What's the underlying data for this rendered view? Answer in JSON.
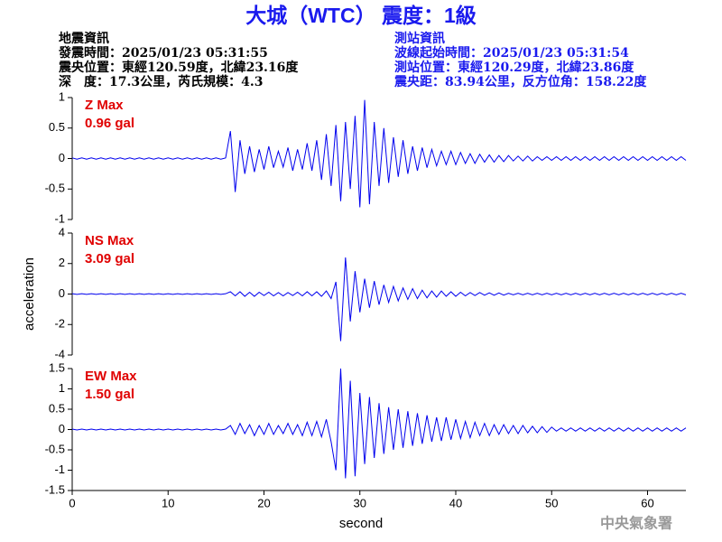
{
  "header": {
    "title": "大城（WTC） 震度：1級",
    "left_info": [
      "地震資訊",
      "發震時間：2025/01/23 05:31:55",
      "震央位置：東經120.59度，北緯23.16度",
      "深　度：17.3公里，芮氏規模：4.3"
    ],
    "right_info": [
      "測站資訊",
      "波線起始時間：2025/01/23 05:31:54",
      "測站位置：東經120.29度，北緯23.86度",
      "震央距：83.94公里，反方位角：158.22度"
    ],
    "footer": "中央氣象署"
  },
  "chart_data": [
    {
      "type": "line",
      "annotations": [
        "Z Max",
        "0.96 gal"
      ],
      "x": [
        0,
        0.5,
        1,
        1.5,
        2,
        2.5,
        3,
        3.5,
        4,
        4.5,
        5,
        5.5,
        6,
        6.5,
        7,
        7.5,
        8,
        8.5,
        9,
        9.5,
        10,
        10.5,
        11,
        11.5,
        12,
        12.5,
        13,
        13.5,
        14,
        14.5,
        15,
        15.5,
        16,
        16.5,
        17,
        17.5,
        18,
        18.5,
        19,
        19.5,
        20,
        20.5,
        21,
        21.5,
        22,
        22.5,
        23,
        23.5,
        24,
        24.5,
        25,
        25.5,
        26,
        26.5,
        27,
        27.5,
        28,
        28.5,
        29,
        29.5,
        30,
        30.5,
        31,
        31.5,
        32,
        32.5,
        33,
        33.5,
        34,
        34.5,
        35,
        35.5,
        36,
        36.5,
        37,
        37.5,
        38,
        38.5,
        39,
        39.5,
        40,
        40.5,
        41,
        41.5,
        42,
        42.5,
        43,
        43.5,
        44,
        44.5,
        45,
        45.5,
        46,
        46.5,
        47,
        47.5,
        48,
        48.5,
        49,
        49.5,
        50,
        50.5,
        51,
        51.5,
        52,
        52.5,
        53,
        53.5,
        54,
        54.5,
        55,
        55.5,
        56,
        56.5,
        57,
        57.5,
        58,
        58.5,
        59,
        59.5,
        60,
        60.5,
        61,
        61.5,
        62,
        62.5,
        63,
        63.5,
        64
      ],
      "series": [
        {
          "color": "#0000ee",
          "values": [
            0.01,
            -0.01,
            0.01,
            -0.01,
            0.01,
            -0.01,
            0.01,
            -0.01,
            0.01,
            -0.01,
            0.01,
            -0.01,
            0.01,
            -0.01,
            0.01,
            -0.01,
            0.01,
            -0.01,
            0.01,
            -0.01,
            0.01,
            -0.01,
            0.01,
            -0.01,
            0.01,
            -0.01,
            0.01,
            -0.01,
            0.01,
            -0.01,
            0.01,
            -0.01,
            0.01,
            0.45,
            -0.55,
            0.3,
            -0.25,
            0.2,
            -0.22,
            0.15,
            -0.18,
            0.2,
            -0.15,
            0.12,
            -0.14,
            0.18,
            -0.2,
            0.15,
            -0.18,
            0.25,
            -0.2,
            0.3,
            -0.35,
            0.4,
            -0.45,
            0.55,
            -0.7,
            0.6,
            -0.5,
            0.7,
            -0.8,
            0.96,
            -0.75,
            0.6,
            -0.45,
            0.5,
            -0.4,
            0.35,
            -0.3,
            0.3,
            -0.25,
            0.2,
            -0.2,
            0.18,
            -0.15,
            0.15,
            -0.12,
            0.12,
            -0.1,
            0.12,
            -0.1,
            0.1,
            -0.08,
            0.08,
            -0.08,
            0.07,
            -0.06,
            0.06,
            -0.06,
            0.05,
            -0.05,
            0.05,
            -0.04,
            0.04,
            -0.04,
            0.04,
            -0.04,
            0.03,
            -0.03,
            0.03,
            -0.03,
            0.03,
            -0.03,
            0.03,
            -0.03,
            0.03,
            -0.03,
            0.03,
            -0.03,
            0.03,
            -0.03,
            0.03,
            -0.03,
            0.03,
            -0.03,
            0.03,
            -0.03,
            0.03,
            -0.03,
            0.03,
            -0.03,
            0.03,
            -0.03,
            0.03,
            -0.03,
            0.03,
            -0.03,
            0.03,
            -0.03
          ]
        }
      ],
      "xlim": [
        0,
        64
      ],
      "ylim": [
        -1,
        1
      ],
      "yticks": [
        -1,
        -0.5,
        0,
        0.5,
        1
      ]
    },
    {
      "type": "line",
      "annotations": [
        "NS Max",
        "3.09 gal"
      ],
      "y_label": "acceleration",
      "x": [
        0,
        0.5,
        1,
        1.5,
        2,
        2.5,
        3,
        3.5,
        4,
        4.5,
        5,
        5.5,
        6,
        6.5,
        7,
        7.5,
        8,
        8.5,
        9,
        9.5,
        10,
        10.5,
        11,
        11.5,
        12,
        12.5,
        13,
        13.5,
        14,
        14.5,
        15,
        15.5,
        16,
        16.5,
        17,
        17.5,
        18,
        18.5,
        19,
        19.5,
        20,
        20.5,
        21,
        21.5,
        22,
        22.5,
        23,
        23.5,
        24,
        24.5,
        25,
        25.5,
        26,
        26.5,
        27,
        27.5,
        28,
        28.5,
        29,
        29.5,
        30,
        30.5,
        31,
        31.5,
        32,
        32.5,
        33,
        33.5,
        34,
        34.5,
        35,
        35.5,
        36,
        36.5,
        37,
        37.5,
        38,
        38.5,
        39,
        39.5,
        40,
        40.5,
        41,
        41.5,
        42,
        42.5,
        43,
        43.5,
        44,
        44.5,
        45,
        45.5,
        46,
        46.5,
        47,
        47.5,
        48,
        48.5,
        49,
        49.5,
        50,
        50.5,
        51,
        51.5,
        52,
        52.5,
        53,
        53.5,
        54,
        54.5,
        55,
        55.5,
        56,
        56.5,
        57,
        57.5,
        58,
        58.5,
        59,
        59.5,
        60,
        60.5,
        61,
        61.5,
        62,
        62.5,
        63,
        63.5,
        64
      ],
      "series": [
        {
          "color": "#0000ee",
          "values": [
            0.02,
            -0.02,
            0.02,
            -0.02,
            0.02,
            -0.02,
            0.02,
            -0.02,
            0.02,
            -0.02,
            0.02,
            -0.02,
            0.02,
            -0.02,
            0.02,
            -0.02,
            0.02,
            -0.02,
            0.02,
            -0.02,
            0.02,
            -0.02,
            0.02,
            -0.02,
            0.02,
            -0.02,
            0.02,
            -0.02,
            0.02,
            -0.02,
            0.02,
            -0.02,
            0.02,
            0.15,
            -0.12,
            0.15,
            -0.15,
            0.12,
            -0.15,
            0.12,
            -0.1,
            0.12,
            -0.12,
            0.1,
            -0.12,
            0.1,
            -0.1,
            0.12,
            -0.12,
            0.15,
            -0.12,
            0.15,
            -0.15,
            0.2,
            -0.3,
            0.8,
            -3.09,
            2.4,
            -1.8,
            1.5,
            -1.2,
            1.0,
            -0.9,
            0.85,
            -0.7,
            0.6,
            -0.55,
            0.5,
            -0.45,
            0.4,
            -0.35,
            0.35,
            -0.3,
            0.25,
            -0.25,
            0.2,
            -0.2,
            0.2,
            -0.15,
            0.15,
            -0.15,
            0.12,
            -0.12,
            0.1,
            -0.1,
            0.1,
            -0.08,
            0.08,
            -0.08,
            0.07,
            -0.07,
            0.05,
            -0.05,
            0.05,
            -0.05,
            0.05,
            -0.05,
            0.05,
            -0.05,
            0.05,
            -0.05,
            0.05,
            -0.05,
            0.05,
            -0.05,
            0.05,
            -0.05,
            0.05,
            -0.05,
            0.05,
            -0.05,
            0.05,
            -0.05,
            0.05,
            -0.05,
            0.05,
            -0.05,
            0.05,
            -0.05,
            0.05,
            -0.05,
            0.05,
            -0.05,
            0.05,
            -0.05,
            0.05,
            -0.05,
            0.05,
            -0.05
          ]
        }
      ],
      "xlim": [
        0,
        64
      ],
      "ylim": [
        -4,
        4
      ],
      "yticks": [
        -4,
        -2,
        0,
        2,
        4
      ]
    },
    {
      "type": "line",
      "annotations": [
        "EW Max",
        "1.50 gal"
      ],
      "x_label": "second",
      "x": [
        0,
        0.5,
        1,
        1.5,
        2,
        2.5,
        3,
        3.5,
        4,
        4.5,
        5,
        5.5,
        6,
        6.5,
        7,
        7.5,
        8,
        8.5,
        9,
        9.5,
        10,
        10.5,
        11,
        11.5,
        12,
        12.5,
        13,
        13.5,
        14,
        14.5,
        15,
        15.5,
        16,
        16.5,
        17,
        17.5,
        18,
        18.5,
        19,
        19.5,
        20,
        20.5,
        21,
        21.5,
        22,
        22.5,
        23,
        23.5,
        24,
        24.5,
        25,
        25.5,
        26,
        26.5,
        27,
        27.5,
        28,
        28.5,
        29,
        29.5,
        30,
        30.5,
        31,
        31.5,
        32,
        32.5,
        33,
        33.5,
        34,
        34.5,
        35,
        35.5,
        36,
        36.5,
        37,
        37.5,
        38,
        38.5,
        39,
        39.5,
        40,
        40.5,
        41,
        41.5,
        42,
        42.5,
        43,
        43.5,
        44,
        44.5,
        45,
        45.5,
        46,
        46.5,
        47,
        47.5,
        48,
        48.5,
        49,
        49.5,
        50,
        50.5,
        51,
        51.5,
        52,
        52.5,
        53,
        53.5,
        54,
        54.5,
        55,
        55.5,
        56,
        56.5,
        57,
        57.5,
        58,
        58.5,
        59,
        59.5,
        60,
        60.5,
        61,
        61.5,
        62,
        62.5,
        63,
        63.5,
        64
      ],
      "series": [
        {
          "color": "#0000ee",
          "values": [
            0.01,
            -0.01,
            0.01,
            -0.01,
            0.01,
            -0.01,
            0.01,
            -0.01,
            0.01,
            -0.01,
            0.01,
            -0.01,
            0.01,
            -0.01,
            0.01,
            -0.01,
            0.01,
            -0.01,
            0.01,
            -0.01,
            0.01,
            -0.01,
            0.01,
            -0.01,
            0.01,
            -0.01,
            0.01,
            -0.01,
            0.01,
            -0.01,
            0.01,
            -0.01,
            0.01,
            0.1,
            -0.12,
            0.15,
            -0.1,
            0.12,
            -0.15,
            0.1,
            -0.12,
            0.15,
            -0.12,
            0.1,
            -0.1,
            0.15,
            -0.12,
            0.12,
            -0.15,
            0.18,
            -0.15,
            0.2,
            -0.18,
            0.25,
            -0.3,
            -1.0,
            1.5,
            -1.2,
            1.2,
            -1.15,
            0.9,
            -0.85,
            0.8,
            -0.7,
            0.65,
            -0.6,
            0.55,
            -0.5,
            0.5,
            -0.45,
            0.45,
            -0.4,
            0.4,
            -0.35,
            0.35,
            -0.3,
            0.3,
            -0.28,
            0.3,
            -0.25,
            0.25,
            -0.22,
            0.2,
            -0.2,
            0.18,
            -0.15,
            0.15,
            -0.15,
            0.12,
            -0.12,
            0.12,
            -0.1,
            0.1,
            -0.1,
            0.1,
            -0.08,
            0.08,
            -0.08,
            0.07,
            -0.07,
            0.06,
            -0.04,
            0.04,
            -0.04,
            0.04,
            -0.04,
            0.04,
            -0.04,
            0.04,
            -0.04,
            0.04,
            -0.04,
            0.04,
            -0.04,
            0.04,
            -0.04,
            0.04,
            -0.04,
            0.04,
            -0.04,
            0.04,
            -0.04,
            0.04,
            -0.04,
            0.04,
            -0.04,
            0.04,
            -0.04,
            0.04
          ]
        }
      ],
      "xlim": [
        0,
        64
      ],
      "ylim": [
        -1.5,
        1.5
      ],
      "yticks": [
        -1.5,
        -1,
        -0.5,
        0,
        0.5,
        1,
        1.5
      ],
      "xticks": [
        0,
        10,
        20,
        30,
        40,
        50,
        60
      ]
    }
  ]
}
